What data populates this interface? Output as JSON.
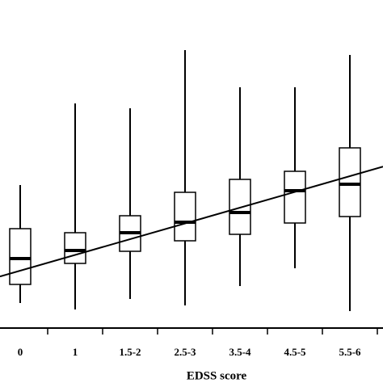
{
  "chart_data": {
    "type": "box",
    "x_label": "EDSS score",
    "categories": [
      "0",
      "1",
      "1.5-2",
      "2.5-3",
      "3.5-4",
      "4.5-5",
      "5.5-6"
    ],
    "boxes": [
      {
        "min": 31,
        "q1": 54,
        "median": 86,
        "q3": 123,
        "max": 177
      },
      {
        "min": 23,
        "q1": 80,
        "median": 96,
        "q3": 118,
        "max": 278
      },
      {
        "min": 36,
        "q1": 95,
        "median": 118,
        "q3": 139,
        "max": 272
      },
      {
        "min": 28,
        "q1": 108,
        "median": 131,
        "q3": 168,
        "max": 344
      },
      {
        "min": 52,
        "q1": 116,
        "median": 143,
        "q3": 184,
        "max": 298
      },
      {
        "min": 74,
        "q1": 130,
        "median": 170,
        "q3": 194,
        "max": 298
      },
      {
        "min": 21,
        "q1": 138,
        "median": 178,
        "q3": 223,
        "max": 338
      }
    ],
    "trend_line": {
      "values": [
        71,
        188
      ]
    },
    "color": "#000000",
    "ylim": [
      0,
      406
    ]
  }
}
